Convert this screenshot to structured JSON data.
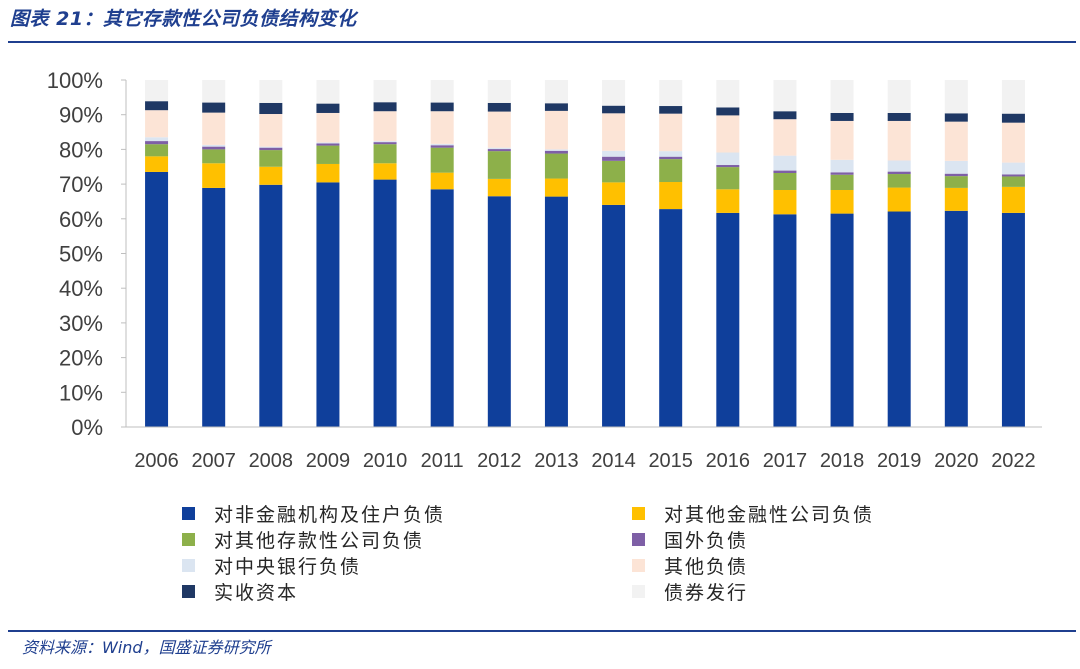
{
  "header": {
    "title": "图表 21：其它存款性公司负债结构变化"
  },
  "footer": {
    "source": "资料来源：Wind，国盛证券研究所"
  },
  "chart_data": {
    "type": "bar",
    "stacked": true,
    "categories": [
      "2006",
      "2007",
      "2008",
      "2009",
      "2010",
      "2011",
      "2012",
      "2013",
      "2014",
      "2015",
      "2016",
      "2017",
      "2018",
      "2019",
      "2020",
      "2022"
    ],
    "y_ticks": [
      "0%",
      "10%",
      "20%",
      "30%",
      "40%",
      "50%",
      "60%",
      "70%",
      "80%",
      "90%",
      "100%"
    ],
    "ylim": [
      0,
      100
    ],
    "y_unit": "%",
    "grid": false,
    "legend_position": "bottom",
    "series": [
      {
        "name": "对非金融机构及住户负债",
        "color": "#0f3f9b",
        "values": [
          73.5,
          68.9,
          69.8,
          70.5,
          71.3,
          68.5,
          66.5,
          66.4,
          64.0,
          62.8,
          61.7,
          61.3,
          61.5,
          62.1,
          62.3,
          61.7
        ]
      },
      {
        "name": "对其他金融性公司负债",
        "color": "#ffc000",
        "values": [
          4.5,
          7.1,
          5.2,
          5.3,
          4.7,
          4.8,
          5.0,
          5.2,
          6.5,
          7.8,
          6.8,
          7.0,
          6.8,
          6.9,
          6.6,
          7.5
        ]
      },
      {
        "name": "对其他存款性公司负债",
        "color": "#8db04a",
        "values": [
          3.5,
          4.0,
          4.8,
          5.3,
          5.5,
          7.2,
          8.0,
          7.2,
          6.2,
          6.6,
          6.4,
          4.9,
          4.4,
          3.9,
          3.4,
          3.0
        ]
      },
      {
        "name": "国外负债",
        "color": "#7e5fa6",
        "values": [
          0.9,
          0.8,
          0.7,
          0.6,
          0.6,
          0.7,
          0.6,
          0.8,
          1.2,
          0.7,
          0.6,
          0.7,
          0.7,
          0.7,
          0.7,
          0.6
        ]
      },
      {
        "name": "对中央银行负债",
        "color": "#dbe5f1",
        "values": [
          1.1,
          0.5,
          0.3,
          0.3,
          0.3,
          0.4,
          0.4,
          0.4,
          1.7,
          1.6,
          3.6,
          4.3,
          3.6,
          3.2,
          3.7,
          3.4
        ]
      },
      {
        "name": "其他负债",
        "color": "#fce4d6",
        "values": [
          7.8,
          9.3,
          9.4,
          8.5,
          8.6,
          9.4,
          10.4,
          11.1,
          10.8,
          10.8,
          10.7,
          10.5,
          11.2,
          11.4,
          11.3,
          11.5
        ]
      },
      {
        "name": "实收资本",
        "color": "#1f3864",
        "values": [
          2.6,
          2.9,
          3.2,
          2.7,
          2.6,
          2.5,
          2.5,
          2.2,
          2.2,
          2.2,
          2.3,
          2.3,
          2.3,
          2.3,
          2.4,
          2.6
        ]
      },
      {
        "name": "债券发行",
        "color": "#f2f2f2",
        "values": [
          6.1,
          6.5,
          6.6,
          6.8,
          6.4,
          6.5,
          6.6,
          6.7,
          7.4,
          7.5,
          7.9,
          9.0,
          9.5,
          9.5,
          9.6,
          9.7
        ]
      }
    ]
  }
}
